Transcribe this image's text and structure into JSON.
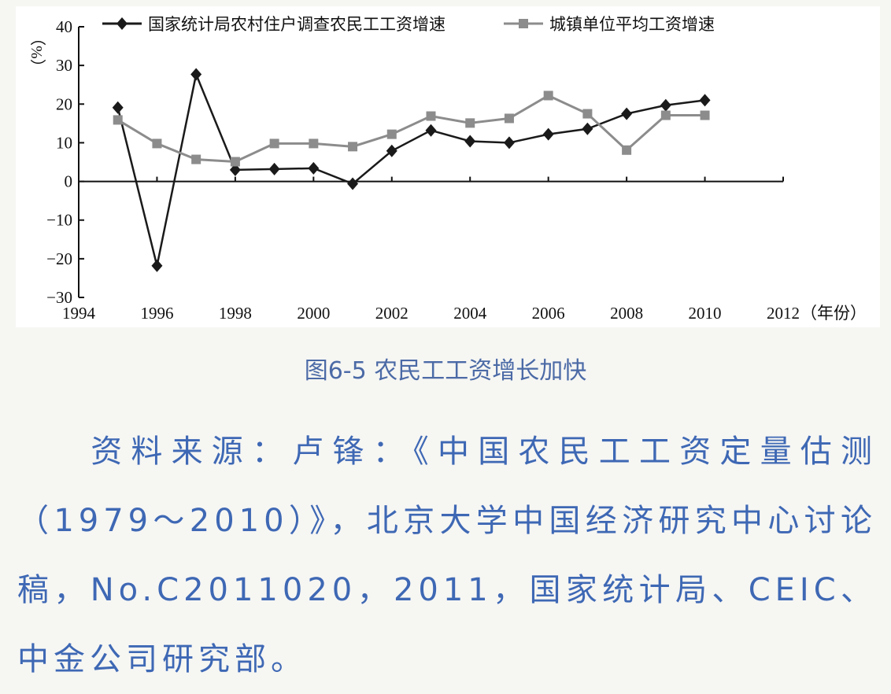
{
  "chart_data": {
    "type": "line",
    "title": "",
    "ylabel": "（%）",
    "xlabel": "（年份）",
    "xlim": [
      1994,
      2012
    ],
    "ylim": [
      -30,
      40
    ],
    "x_ticks": [
      1994,
      1996,
      1998,
      2000,
      2002,
      2004,
      2006,
      2008,
      2010,
      2012
    ],
    "y_ticks": [
      -30,
      -20,
      -10,
      0,
      10,
      20,
      30,
      40
    ],
    "grid": false,
    "legend_position": "top",
    "x": [
      1995,
      1996,
      1997,
      1998,
      1999,
      2000,
      2001,
      2002,
      2003,
      2004,
      2005,
      2006,
      2007,
      2008,
      2009,
      2010
    ],
    "series": [
      {
        "name": "国家统计局农村住户调查农民工工资增速",
        "color": "#1a1a1a",
        "marker": "diamond",
        "values": [
          19.1,
          -21.8,
          27.7,
          3.0,
          3.2,
          3.4,
          -0.6,
          7.9,
          13.2,
          10.4,
          10.0,
          12.2,
          13.6,
          17.5,
          19.7,
          21.0
        ]
      },
      {
        "name": "城镇单位平均工资增速",
        "color": "#8c8c8c",
        "marker": "square",
        "values": [
          15.9,
          9.8,
          5.7,
          5.1,
          9.8,
          9.8,
          9.0,
          12.2,
          16.9,
          15.1,
          16.3,
          22.2,
          17.5,
          8.1,
          17.1,
          17.1
        ]
      }
    ]
  },
  "caption": "图6-5 农民工工资增长加快",
  "source": "资料来源：卢锋：《中国农民工工资定量估测（1979～2010）》，北京大学中国经济研究中心讨论稿，No.C2011020，2011，国家统计局、CEIC、中金公司研究部。"
}
